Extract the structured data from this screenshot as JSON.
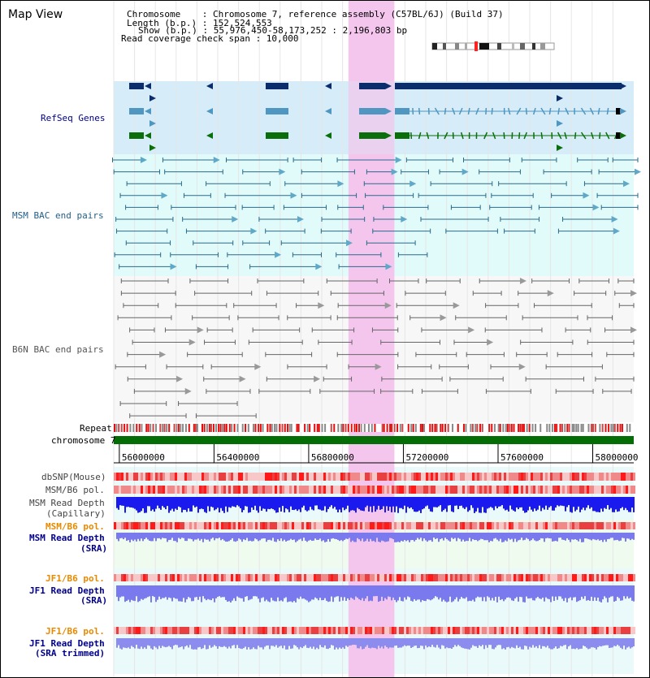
{
  "title": "Map View",
  "header": {
    "chromosome": "Chromosome    : Chromosome 7, reference assembly (C57BL/6J) (Build 37)",
    "length": "Length (b.p.) : 152,524,553",
    "show": "Show (b.p.) : 55,976,450-58,173,252 : 2,196,803 bp",
    "coverage": "Read coverage check span : 10,000"
  },
  "tracks": {
    "refseq": "RefSeq Genes",
    "msm_bac": "MSM BAC end pairs",
    "b6n_bac": "B6N BAC end pairs",
    "repeat": "Repeat",
    "chromosome": "chromosome 7",
    "dbsnp": "dbSNP(Mouse)",
    "msm_b6_pol": "MSM/B6 pol.",
    "msm_depth_cap_1": "MSM Read Depth",
    "msm_depth_cap_2": "(Capillary)",
    "msm_b6_pol_sra": "MSM/B6 pol.",
    "msm_depth_sra_1": "MSM Read Depth",
    "msm_depth_sra_2": "(SRA)",
    "jf1_b6_pol": "JF1/B6 pol.",
    "jf1_depth_1": "JF1 Read Depth",
    "jf1_depth_2": "(SRA)",
    "jf1_b6_pol_2": "JF1/B6 pol.",
    "jf1_trim_1": "JF1 Read Depth",
    "jf1_trim_2": "(SRA trimmed)"
  },
  "axis": {
    "ticks": [
      {
        "value": 56000000,
        "label": "56000000"
      },
      {
        "value": 56400000,
        "label": "56400000"
      },
      {
        "value": 56800000,
        "label": "56800000"
      },
      {
        "value": 57200000,
        "label": "57200000"
      },
      {
        "value": 57600000,
        "label": "57600000"
      },
      {
        "value": 58000000,
        "label": "58000000"
      }
    ],
    "range": [
      55976450,
      58173252
    ]
  },
  "highlight_range": [
    56968000,
    57162000
  ],
  "colors": {
    "highlight": "#f4c6ee",
    "refseq_bg": "#d6ecf8",
    "msm_bg": "#e1fbfb",
    "navy": "#0c2d6b",
    "steel": "#4f96c1",
    "green": "#0a6f0a",
    "msm_pair": "#2a6a8a",
    "b6n_pair": "#666666",
    "chrom": "#056d05",
    "orange_label": "#e88a00",
    "navy_label": "#00008b",
    "depth_blue": "#1a1aee",
    "depth_lav": "#7a7aee"
  }
}
